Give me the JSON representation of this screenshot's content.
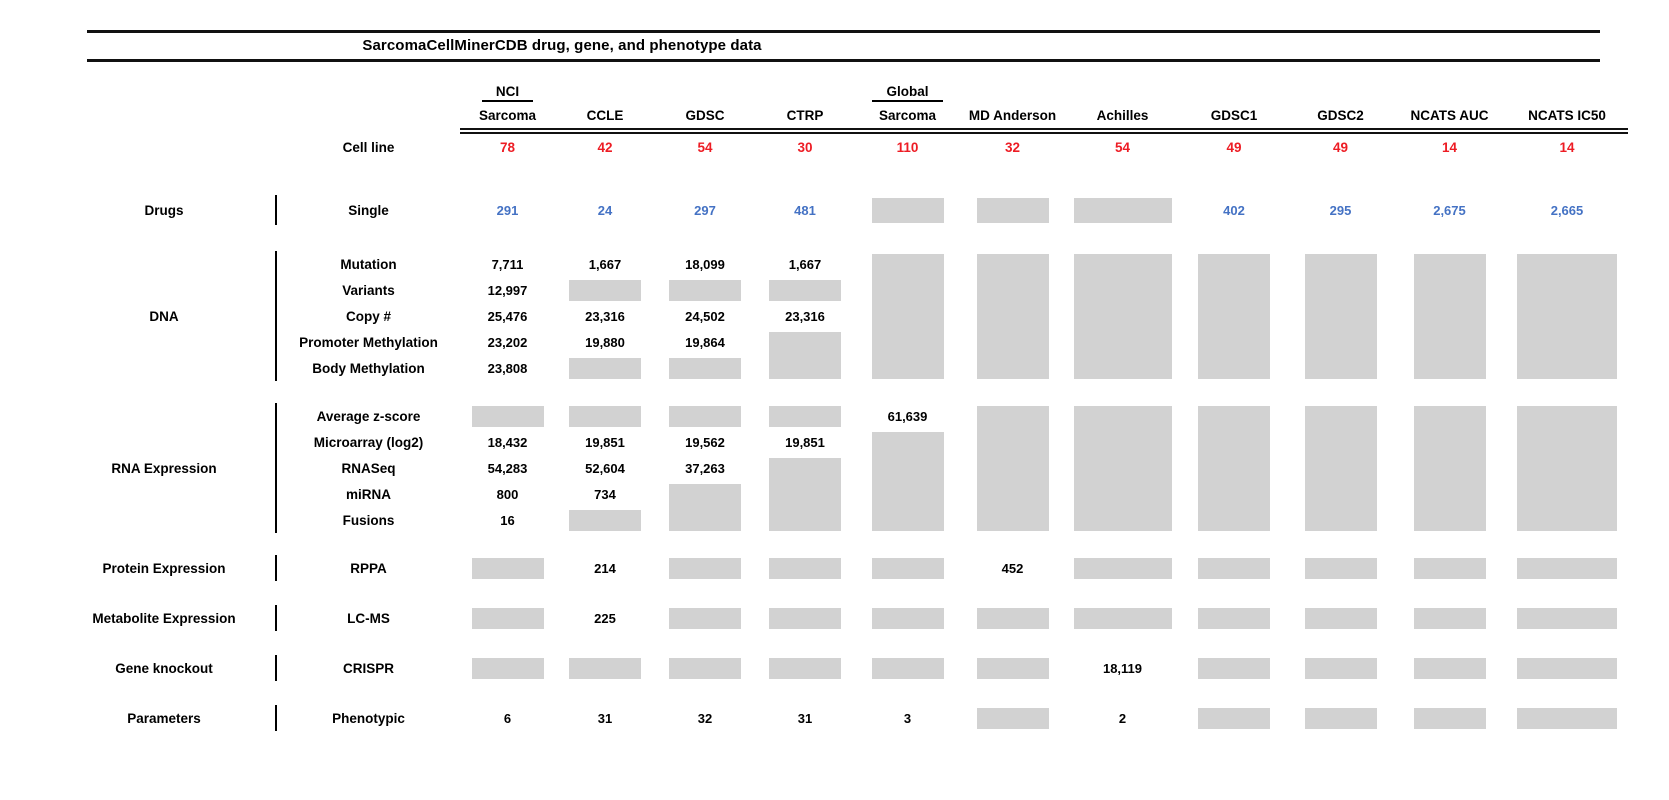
{
  "colors": {
    "count_red": "#ed1c24",
    "drug_blue": "#4472c4",
    "missing_gray": "#d2d2d2",
    "text_black": "#000000"
  },
  "chart_data": {
    "type": "table",
    "title": "SarcomaCellMinerCDB drug, gene, and phenotype data",
    "columns": [
      {
        "name": "NCI Sarcoma",
        "line1": "NCI",
        "line2": "Sarcoma",
        "overline": true
      },
      {
        "name": "CCLE",
        "line1": "",
        "line2": "CCLE",
        "overline": false
      },
      {
        "name": "GDSC",
        "line1": "",
        "line2": "GDSC",
        "overline": false
      },
      {
        "name": "CTRP",
        "line1": "",
        "line2": "CTRP",
        "overline": false
      },
      {
        "name": "Global Sarcoma",
        "line1": "Global",
        "line2": "Sarcoma",
        "overline": true
      },
      {
        "name": "MD Anderson",
        "line1": "",
        "line2": "MD Anderson",
        "overline": false
      },
      {
        "name": "Achilles",
        "line1": "",
        "line2": "Achilles",
        "overline": false
      },
      {
        "name": "GDSC1",
        "line1": "",
        "line2": "GDSC1",
        "overline": false
      },
      {
        "name": "GDSC2",
        "line1": "",
        "line2": "GDSC2",
        "overline": false
      },
      {
        "name": "NCATS AUC",
        "line1": "",
        "line2": "NCATS AUC",
        "overline": false
      },
      {
        "name": "NCATS IC50",
        "line1": "",
        "line2": "NCATS IC50",
        "overline": false
      }
    ],
    "cell_line_row": {
      "label": "Cell line",
      "counts": [
        "78",
        "42",
        "54",
        "30",
        "110",
        "32",
        "54",
        "49",
        "49",
        "14",
        "14"
      ]
    },
    "sections": [
      {
        "category": "Drugs",
        "value_color": "drug_blue",
        "rows": [
          {
            "label": "Single",
            "cells": [
              "291",
              "24",
              "297",
              "481",
              {
                "box": 1
              },
              {
                "box": 1
              },
              {
                "box": 1
              },
              "402",
              "295",
              "2,675",
              "2,665"
            ]
          }
        ]
      },
      {
        "category": "DNA",
        "value_color": "text_black",
        "rows": [
          {
            "label": "Mutation",
            "cells": [
              "7,711",
              "1,667",
              "18,099",
              "1,667",
              {
                "box": 5
              },
              {
                "box": 5
              },
              {
                "box": 5
              },
              {
                "box": 5
              },
              {
                "box": 5
              },
              {
                "box": 5
              },
              {
                "box": 5
              }
            ]
          },
          {
            "label": "Variants",
            "cells": [
              "12,997",
              {
                "box": 1
              },
              {
                "box": 1
              },
              {
                "box": 1
              },
              null,
              null,
              null,
              null,
              null,
              null,
              null
            ]
          },
          {
            "label": "Copy #",
            "cells": [
              "25,476",
              "23,316",
              "24,502",
              "23,316",
              null,
              null,
              null,
              null,
              null,
              null,
              null
            ]
          },
          {
            "label": "Promoter Methylation",
            "cells": [
              "23,202",
              "19,880",
              "19,864",
              {
                "box": 2
              },
              null,
              null,
              null,
              null,
              null,
              null,
              null
            ]
          },
          {
            "label": "Body Methylation",
            "cells": [
              "23,808",
              {
                "box": 1
              },
              {
                "box": 1
              },
              null,
              null,
              null,
              null,
              null,
              null,
              null,
              null
            ]
          }
        ]
      },
      {
        "category": "RNA Expression",
        "value_color": "text_black",
        "rows": [
          {
            "label": "Average z-score",
            "cells": [
              {
                "box": 1
              },
              {
                "box": 1
              },
              {
                "box": 1
              },
              {
                "box": 1
              },
              "61,639",
              {
                "box": 5
              },
              {
                "box": 5
              },
              {
                "box": 5
              },
              {
                "box": 5
              },
              {
                "box": 5
              },
              {
                "box": 5
              }
            ]
          },
          {
            "label": "Microarray (log2)",
            "cells": [
              "18,432",
              "19,851",
              "19,562",
              "19,851",
              {
                "box": 4
              },
              null,
              null,
              null,
              null,
              null,
              null
            ]
          },
          {
            "label": "RNASeq",
            "cells": [
              "54,283",
              "52,604",
              "37,263",
              {
                "box": 3
              },
              null,
              null,
              null,
              null,
              null,
              null,
              null
            ]
          },
          {
            "label": "miRNA",
            "cells": [
              "800",
              "734",
              {
                "box": 2
              },
              null,
              null,
              null,
              null,
              null,
              null,
              null,
              null
            ]
          },
          {
            "label": "Fusions",
            "cells": [
              "16",
              {
                "box": 1
              },
              null,
              null,
              null,
              null,
              null,
              null,
              null,
              null,
              null
            ]
          }
        ]
      },
      {
        "category": "Protein Expression",
        "value_color": "text_black",
        "rows": [
          {
            "label": "RPPA",
            "cells": [
              {
                "box": 1
              },
              "214",
              {
                "box": 1
              },
              {
                "box": 1
              },
              {
                "box": 1
              },
              "452",
              {
                "box": 1
              },
              {
                "box": 1
              },
              {
                "box": 1
              },
              {
                "box": 1
              },
              {
                "box": 1
              }
            ]
          }
        ]
      },
      {
        "category": "Metabolite Expression",
        "value_color": "text_black",
        "rows": [
          {
            "label": "LC-MS",
            "cells": [
              {
                "box": 1
              },
              "225",
              {
                "box": 1
              },
              {
                "box": 1
              },
              {
                "box": 1
              },
              {
                "box": 1
              },
              {
                "box": 1
              },
              {
                "box": 1
              },
              {
                "box": 1
              },
              {
                "box": 1
              },
              {
                "box": 1
              }
            ]
          }
        ]
      },
      {
        "category": "Gene knockout",
        "value_color": "text_black",
        "rows": [
          {
            "label": "CRISPR",
            "cells": [
              {
                "box": 1
              },
              {
                "box": 1
              },
              {
                "box": 1
              },
              {
                "box": 1
              },
              {
                "box": 1
              },
              {
                "box": 1
              },
              "18,119",
              {
                "box": 1
              },
              {
                "box": 1
              },
              {
                "box": 1
              },
              {
                "box": 1
              }
            ]
          }
        ]
      },
      {
        "category": "Parameters",
        "value_color": "text_black",
        "rows": [
          {
            "label": "Phenotypic",
            "cells": [
              "6",
              "31",
              "32",
              "31",
              "3",
              {
                "box": 1
              },
              "2",
              {
                "box": 1
              },
              {
                "box": 1
              },
              {
                "box": 1
              },
              {
                "box": 1
              }
            ]
          }
        ]
      }
    ]
  }
}
